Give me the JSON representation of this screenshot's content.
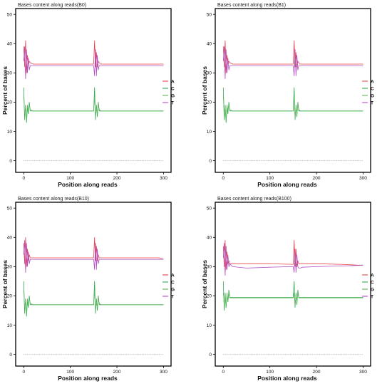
{
  "chart_data": [
    {
      "type": "line",
      "title": "Bases content along reads(B0)",
      "xlabel": "Position along reads",
      "ylabel": "Percent of bases",
      "xlim": [
        -5,
        310
      ],
      "ylim": [
        -4,
        52
      ],
      "xticks": [
        0,
        100,
        200,
        300
      ],
      "yticks": [
        0,
        10,
        20,
        30,
        40,
        50
      ],
      "legend_position": "right",
      "grid": false,
      "series": [
        {
          "name": "A",
          "color": "#e8454b",
          "x": [
            0,
            2,
            4,
            6,
            8,
            10,
            12,
            14,
            20,
            50,
            100,
            145,
            150,
            152,
            154,
            156,
            158,
            160,
            162,
            165,
            170,
            200,
            250,
            290,
            300
          ],
          "values": [
            39,
            32,
            41,
            30,
            36,
            33,
            34,
            33.5,
            33,
            33,
            33,
            33,
            33,
            41,
            32,
            37,
            32,
            34,
            33.5,
            33,
            33,
            33,
            33,
            33,
            33
          ]
        },
        {
          "name": "C",
          "color": "#35a852",
          "x": [
            0,
            2,
            4,
            6,
            8,
            10,
            12,
            14,
            20,
            50,
            100,
            145,
            150,
            152,
            154,
            156,
            158,
            160,
            162,
            165,
            170,
            200,
            250,
            290,
            300
          ],
          "values": [
            25,
            14,
            19,
            13,
            18,
            16,
            20,
            17,
            17,
            17,
            17,
            17,
            17,
            25,
            14,
            19,
            15,
            20,
            17,
            17,
            17,
            17,
            17,
            17,
            17
          ]
        },
        {
          "name": "G",
          "color": "#5cb85c",
          "x": [
            0,
            2,
            4,
            6,
            8,
            10,
            12,
            14,
            20,
            50,
            100,
            145,
            150,
            152,
            154,
            156,
            158,
            160,
            162,
            165,
            170,
            200,
            250,
            290,
            300
          ],
          "values": [
            22,
            16,
            18,
            14,
            19,
            17,
            19,
            17.5,
            17,
            17,
            17,
            17,
            17,
            22,
            15,
            18,
            16,
            19,
            17.5,
            17,
            17,
            17,
            17,
            17,
            17
          ]
        },
        {
          "name": "T",
          "color": "#b04fc0",
          "x": [
            0,
            2,
            4,
            6,
            8,
            10,
            12,
            14,
            20,
            50,
            100,
            145,
            150,
            152,
            154,
            156,
            158,
            160,
            162,
            165,
            170,
            200,
            250,
            290,
            300
          ],
          "values": [
            34,
            39,
            28,
            38,
            30,
            35,
            31,
            32.5,
            32.5,
            32.5,
            32.5,
            32.5,
            32.5,
            29,
            38,
            29,
            36,
            31,
            32.5,
            32.5,
            32.5,
            32.5,
            32.5,
            32.5,
            32.5
          ]
        }
      ],
      "baseline_y": 0
    },
    {
      "type": "line",
      "title": "Bases content along reads(B1)",
      "xlabel": "Position along reads",
      "ylabel": "Percent of bases",
      "xlim": [
        -5,
        310
      ],
      "ylim": [
        -4,
        52
      ],
      "xticks": [
        0,
        100,
        200,
        300
      ],
      "yticks": [
        0,
        10,
        20,
        30,
        40,
        50
      ],
      "legend_position": "right",
      "grid": false,
      "series": [
        {
          "name": "A",
          "color": "#e8454b",
          "x": [
            0,
            2,
            4,
            6,
            8,
            10,
            12,
            14,
            20,
            50,
            100,
            145,
            150,
            152,
            154,
            156,
            158,
            160,
            162,
            165,
            170,
            200,
            250,
            290,
            300
          ],
          "values": [
            39,
            32,
            41,
            30,
            36,
            33,
            34,
            33.5,
            33,
            33,
            33,
            33,
            33,
            41,
            32,
            37,
            32,
            34,
            33.5,
            33,
            33,
            33,
            33,
            33,
            33
          ]
        },
        {
          "name": "C",
          "color": "#35a852",
          "x": [
            0,
            2,
            4,
            6,
            8,
            10,
            12,
            14,
            20,
            50,
            100,
            145,
            150,
            152,
            154,
            156,
            158,
            160,
            162,
            165,
            170,
            200,
            250,
            290,
            300
          ],
          "values": [
            25,
            14,
            19,
            13,
            18,
            16,
            20,
            17,
            17,
            17,
            17,
            17,
            17,
            25,
            14,
            19,
            15,
            20,
            17,
            17,
            17,
            17,
            17,
            17,
            17
          ]
        },
        {
          "name": "G",
          "color": "#5cb85c",
          "x": [
            0,
            2,
            4,
            6,
            8,
            10,
            12,
            14,
            20,
            50,
            100,
            145,
            150,
            152,
            154,
            156,
            158,
            160,
            162,
            165,
            170,
            200,
            250,
            290,
            300
          ],
          "values": [
            22,
            16,
            18,
            14,
            19,
            17,
            19,
            17.5,
            17,
            17,
            17,
            17,
            17,
            22,
            15,
            18,
            16,
            19,
            17.5,
            17,
            17,
            17,
            17,
            17,
            17
          ]
        },
        {
          "name": "T",
          "color": "#b04fc0",
          "x": [
            0,
            2,
            4,
            6,
            8,
            10,
            12,
            14,
            20,
            50,
            100,
            145,
            150,
            152,
            154,
            156,
            158,
            160,
            162,
            165,
            170,
            200,
            250,
            290,
            300
          ],
          "values": [
            34,
            39,
            28,
            38,
            30,
            35,
            31,
            32.5,
            32.5,
            32.5,
            32.5,
            32.5,
            32.5,
            29,
            38,
            29,
            36,
            31,
            32.5,
            32.5,
            32.5,
            32.5,
            32.5,
            32.5,
            32.5
          ]
        }
      ],
      "baseline_y": 0
    },
    {
      "type": "line",
      "title": "Bases content along reads(B10)",
      "xlabel": "Position along reads",
      "ylabel": "Percent of bases",
      "xlim": [
        -5,
        310
      ],
      "ylim": [
        -4,
        52
      ],
      "xticks": [
        0,
        100,
        200,
        300
      ],
      "yticks": [
        0,
        10,
        20,
        30,
        40,
        50
      ],
      "legend_position": "right",
      "grid": false,
      "series": [
        {
          "name": "A",
          "color": "#e8454b",
          "x": [
            0,
            2,
            4,
            6,
            8,
            10,
            12,
            14,
            20,
            50,
            100,
            145,
            150,
            152,
            154,
            156,
            158,
            160,
            162,
            165,
            170,
            200,
            250,
            290,
            300
          ],
          "values": [
            38,
            31,
            40,
            30,
            36,
            32,
            34,
            33,
            33,
            33,
            33,
            33,
            33,
            40,
            32,
            37,
            32,
            34,
            33,
            33,
            33,
            33,
            33,
            33,
            32.5
          ]
        },
        {
          "name": "C",
          "color": "#35a852",
          "x": [
            0,
            2,
            4,
            6,
            8,
            10,
            12,
            14,
            20,
            50,
            100,
            145,
            150,
            152,
            154,
            156,
            158,
            160,
            162,
            165,
            170,
            200,
            250,
            290,
            300
          ],
          "values": [
            25,
            14,
            19,
            13,
            18,
            16,
            20,
            17,
            17,
            17,
            17,
            17,
            17,
            25,
            14,
            19,
            15,
            20,
            17,
            17,
            17,
            17,
            17,
            17,
            17
          ]
        },
        {
          "name": "G",
          "color": "#5cb85c",
          "x": [
            0,
            2,
            4,
            6,
            8,
            10,
            12,
            14,
            20,
            50,
            100,
            145,
            150,
            152,
            154,
            156,
            158,
            160,
            162,
            165,
            170,
            200,
            250,
            290,
            300
          ],
          "values": [
            22,
            16,
            18,
            14,
            19,
            17,
            19,
            17.5,
            17,
            17,
            17,
            17,
            17,
            22,
            15,
            18,
            16,
            19,
            17.5,
            17,
            17,
            17,
            17,
            17,
            17
          ]
        },
        {
          "name": "T",
          "color": "#b04fc0",
          "x": [
            0,
            2,
            4,
            6,
            8,
            10,
            12,
            14,
            20,
            50,
            100,
            145,
            150,
            152,
            154,
            156,
            158,
            160,
            162,
            165,
            170,
            200,
            250,
            290,
            300
          ],
          "values": [
            34,
            39,
            28,
            38,
            30,
            35,
            31,
            32.5,
            32.5,
            32.5,
            32.5,
            32.5,
            32.5,
            29,
            38,
            29,
            36,
            31,
            32.5,
            32.5,
            32.5,
            32.5,
            32.5,
            32.5,
            32.5
          ]
        }
      ],
      "baseline_y": 0
    },
    {
      "type": "line",
      "title": "Bases content along reads(B100)",
      "xlabel": "Position along reads",
      "ylabel": "Percent of bases",
      "xlim": [
        -5,
        310
      ],
      "ylim": [
        -4,
        52
      ],
      "xticks": [
        0,
        100,
        200,
        300
      ],
      "yticks": [
        0,
        10,
        20,
        30,
        40,
        50
      ],
      "legend_position": "right",
      "grid": false,
      "series": [
        {
          "name": "A",
          "color": "#e8454b",
          "x": [
            0,
            2,
            4,
            6,
            8,
            10,
            12,
            14,
            20,
            50,
            100,
            145,
            150,
            152,
            154,
            156,
            158,
            160,
            162,
            165,
            170,
            200,
            250,
            290,
            300
          ],
          "values": [
            37,
            30,
            39,
            29,
            35,
            31,
            32,
            31,
            31,
            31,
            31,
            30.8,
            30.8,
            39,
            30,
            36,
            30,
            32,
            31,
            31,
            31,
            31,
            30.8,
            30.5,
            30.5
          ]
        },
        {
          "name": "C",
          "color": "#35a852",
          "x": [
            0,
            2,
            4,
            6,
            8,
            10,
            12,
            14,
            20,
            50,
            100,
            145,
            150,
            152,
            154,
            156,
            158,
            160,
            162,
            165,
            170,
            200,
            250,
            290,
            300
          ],
          "values": [
            25,
            15,
            21,
            16,
            20,
            18,
            22,
            19.5,
            19.5,
            19.5,
            19.5,
            19.5,
            19.5,
            25,
            16,
            21,
            17,
            22,
            19.5,
            19.5,
            19.5,
            19.5,
            19.5,
            19.5,
            19.5
          ]
        },
        {
          "name": "G",
          "color": "#5cb85c",
          "x": [
            0,
            2,
            4,
            6,
            8,
            10,
            12,
            14,
            20,
            50,
            100,
            145,
            150,
            152,
            154,
            156,
            158,
            160,
            162,
            165,
            170,
            200,
            250,
            290,
            300
          ],
          "values": [
            21,
            17,
            20,
            16,
            21,
            18,
            21,
            19.3,
            19.3,
            19.3,
            19.3,
            19.3,
            19.3,
            21,
            17,
            20,
            18,
            21,
            19.3,
            19.3,
            19.3,
            19.3,
            19.3,
            19.3,
            19.3
          ]
        },
        {
          "name": "T",
          "color": "#b04fc0",
          "x": [
            0,
            2,
            4,
            6,
            8,
            10,
            12,
            14,
            20,
            50,
            100,
            145,
            150,
            152,
            154,
            156,
            158,
            160,
            162,
            165,
            170,
            200,
            250,
            290,
            300
          ],
          "values": [
            33,
            38,
            27,
            37,
            29,
            34,
            30,
            31,
            30,
            29.5,
            29.8,
            30,
            30,
            28,
            36,
            28,
            34,
            30,
            29.5,
            29.5,
            29.8,
            30,
            30.2,
            30.4,
            30.5
          ]
        }
      ],
      "baseline_y": 0
    }
  ]
}
